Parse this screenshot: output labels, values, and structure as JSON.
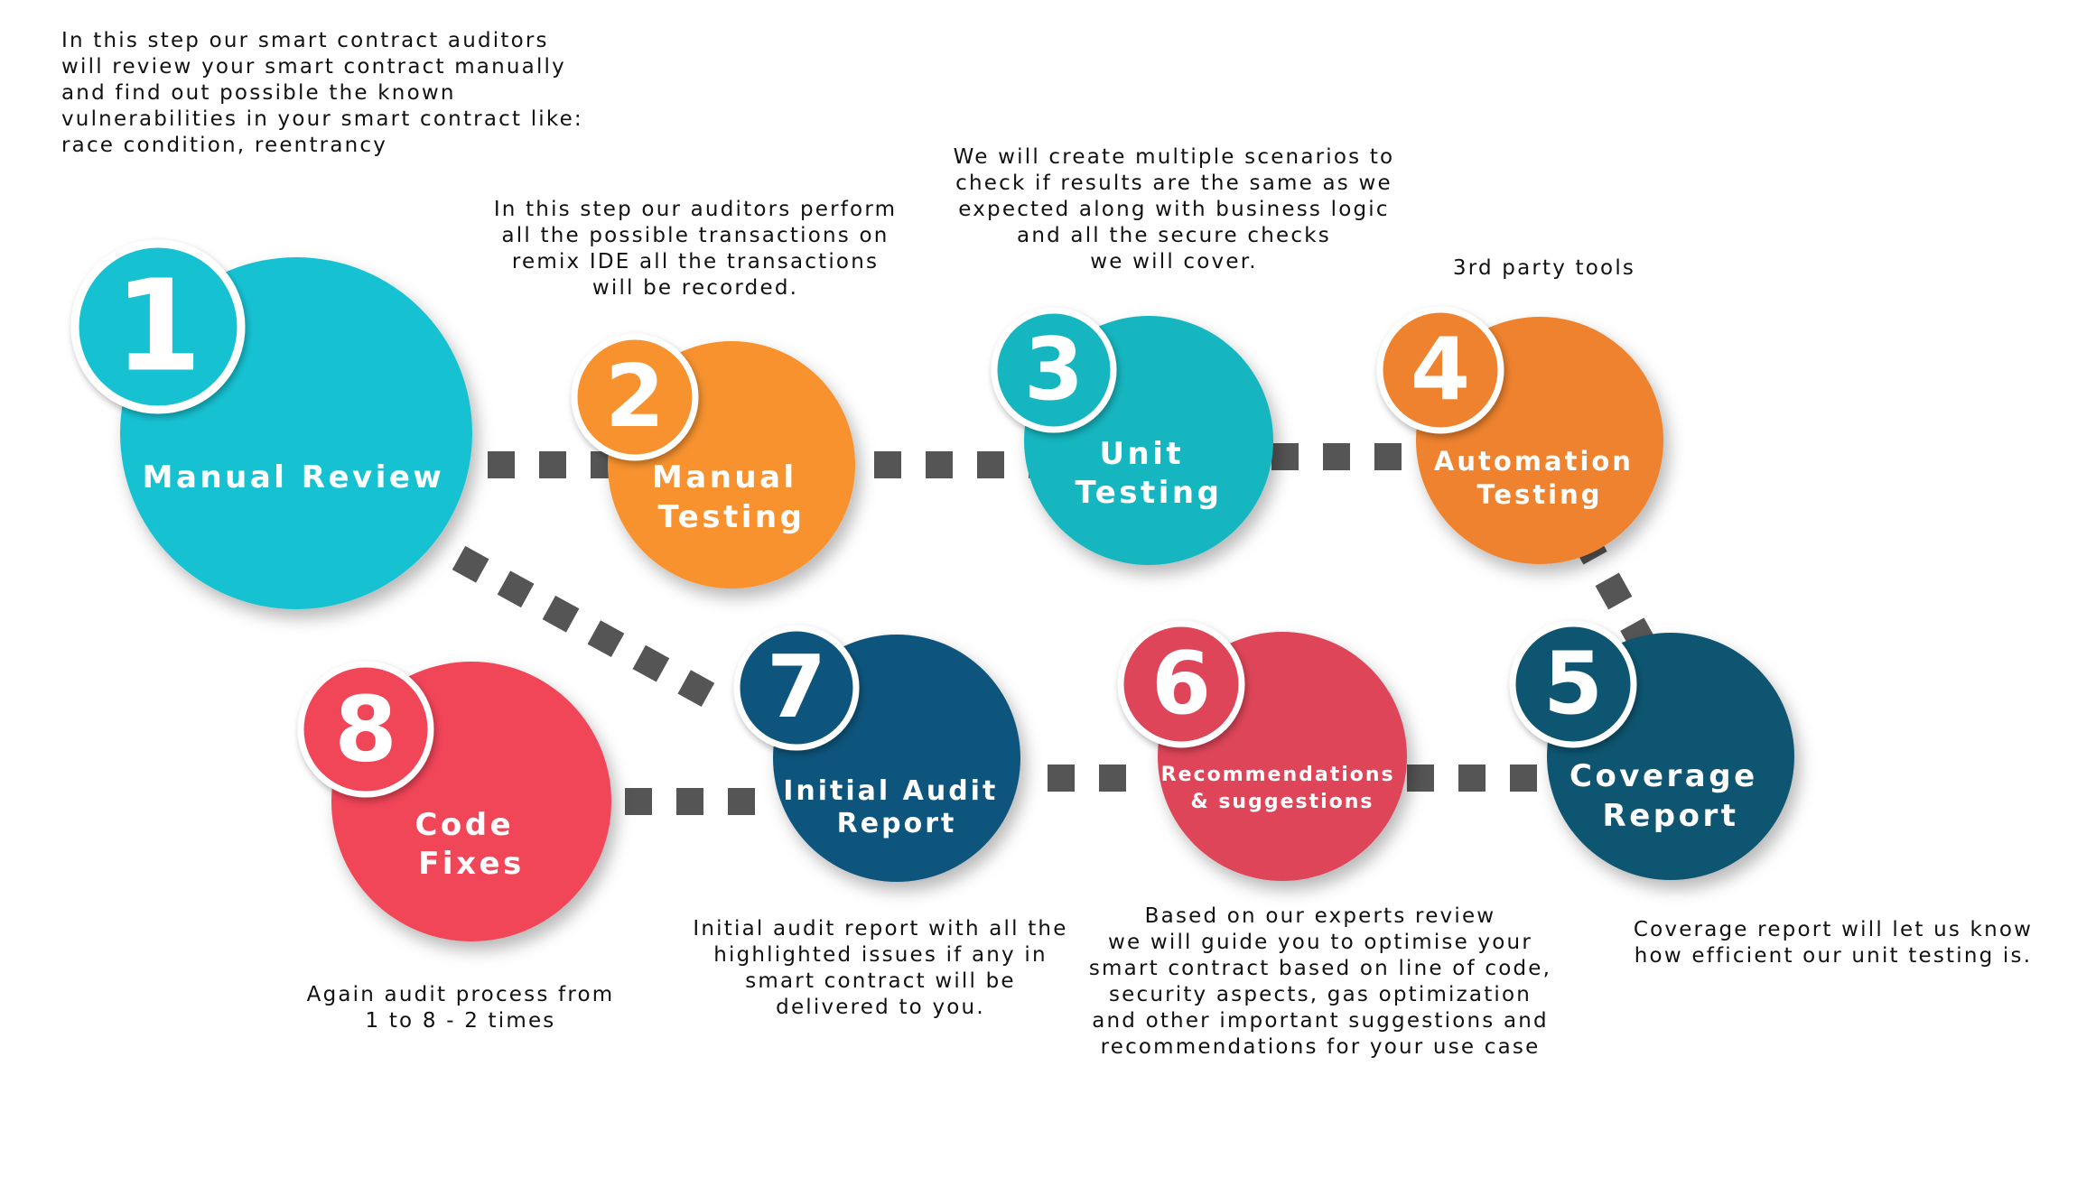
{
  "colors": {
    "teal_light": "#19c2d2",
    "teal": "#16b6c0",
    "orange": "#f7922e",
    "orange_dark": "#ee822e",
    "navy": "#10547c",
    "navy_dark": "#115570",
    "red": "#de4458",
    "pink_red": "#f14459",
    "connector": "#555555",
    "text": "#111111"
  },
  "steps": [
    {
      "id": "manual-review",
      "number": "1",
      "title": "Manual Review",
      "description": "In this step our smart contract auditors\nwill review your smart contract manually\nand find out possible the known\nvulnerabilities in your smart contract like:\nrace condition, reentrancy"
    },
    {
      "id": "manual-testing",
      "number": "2",
      "title": "Manual\nTesting",
      "description": "In this step our auditors perform\nall the possible transactions on\nremix IDE all the transactions\nwill be recorded."
    },
    {
      "id": "unit-testing",
      "number": "3",
      "title": "Unit\nTesting",
      "description": "We will create multiple scenarios to\ncheck if results are the same as we\nexpected along with business logic\nand all the secure checks\nwe will cover."
    },
    {
      "id": "automation-testing",
      "number": "4",
      "title": "Automation\nTesting",
      "description": "3rd party tools"
    },
    {
      "id": "coverage-report",
      "number": "5",
      "title": "Coverage\nReport",
      "description": "Coverage report will let us know\nhow efficient our unit testing is."
    },
    {
      "id": "recommendations",
      "number": "6",
      "title": "Recommendations\n& suggestions",
      "description": "Based on our experts review\nwe will guide you to optimise your\nsmart contract based on line of code,\nsecurity aspects, gas optimization\nand other important suggestions and\nrecommendations for your use case"
    },
    {
      "id": "initial-audit-report",
      "number": "7",
      "title": "Initial Audit\nReport",
      "description": "Initial audit report with all the\nhighlighted issues if any in\nsmart contract will be\ndelivered to you."
    },
    {
      "id": "code-fixes",
      "number": "8",
      "title": "Code\nFixes",
      "description": "Again audit process from\n1 to 8  - 2 times"
    }
  ]
}
